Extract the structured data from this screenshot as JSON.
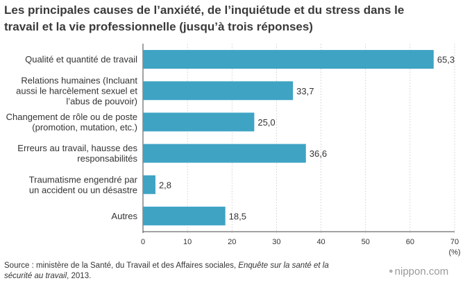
{
  "title_lines": [
    "Les principales causes de l’anxiété, de l’inquiétude et du stress dans le",
    "travail et la vie professionnelle (jusqu’à trois réponses)"
  ],
  "chart_data": {
    "type": "bar",
    "orientation": "horizontal",
    "categories": [
      [
        "Qualité et quantité de travail"
      ],
      [
        "Relations humaines (Incluant",
        "aussi le harcèlement sexuel et",
        "l’abus de pouvoir)"
      ],
      [
        "Changement de rôle ou de poste",
        "(promotion, mutation, etc.)"
      ],
      [
        "Erreurs au travail, hausse des",
        "responsabilités"
      ],
      [
        "Traumatisme engendré par",
        "un accident ou un désastre"
      ],
      [
        "Autres"
      ]
    ],
    "values": [
      65.3,
      33.7,
      25.0,
      36.6,
      2.8,
      18.5
    ],
    "value_labels": [
      "65,3",
      "33,7",
      "25,0",
      "36,6",
      "2,8",
      "18,5"
    ],
    "xlim": [
      0,
      70
    ],
    "xticks": [
      "0",
      "10",
      "20",
      "30",
      "40",
      "50",
      "60",
      "70"
    ],
    "xlabel": "(%)",
    "bar_color": "#3fa3c4",
    "grid": true
  },
  "source": {
    "prefix": "Source : ministère de la Santé, du Travail et des Affaires sociales, ",
    "italic": "Enquête sur la santé et la sécurité au travail",
    "suffix": ", 2013."
  },
  "brand": {
    "dot": "●",
    "name": "nippon.com"
  }
}
